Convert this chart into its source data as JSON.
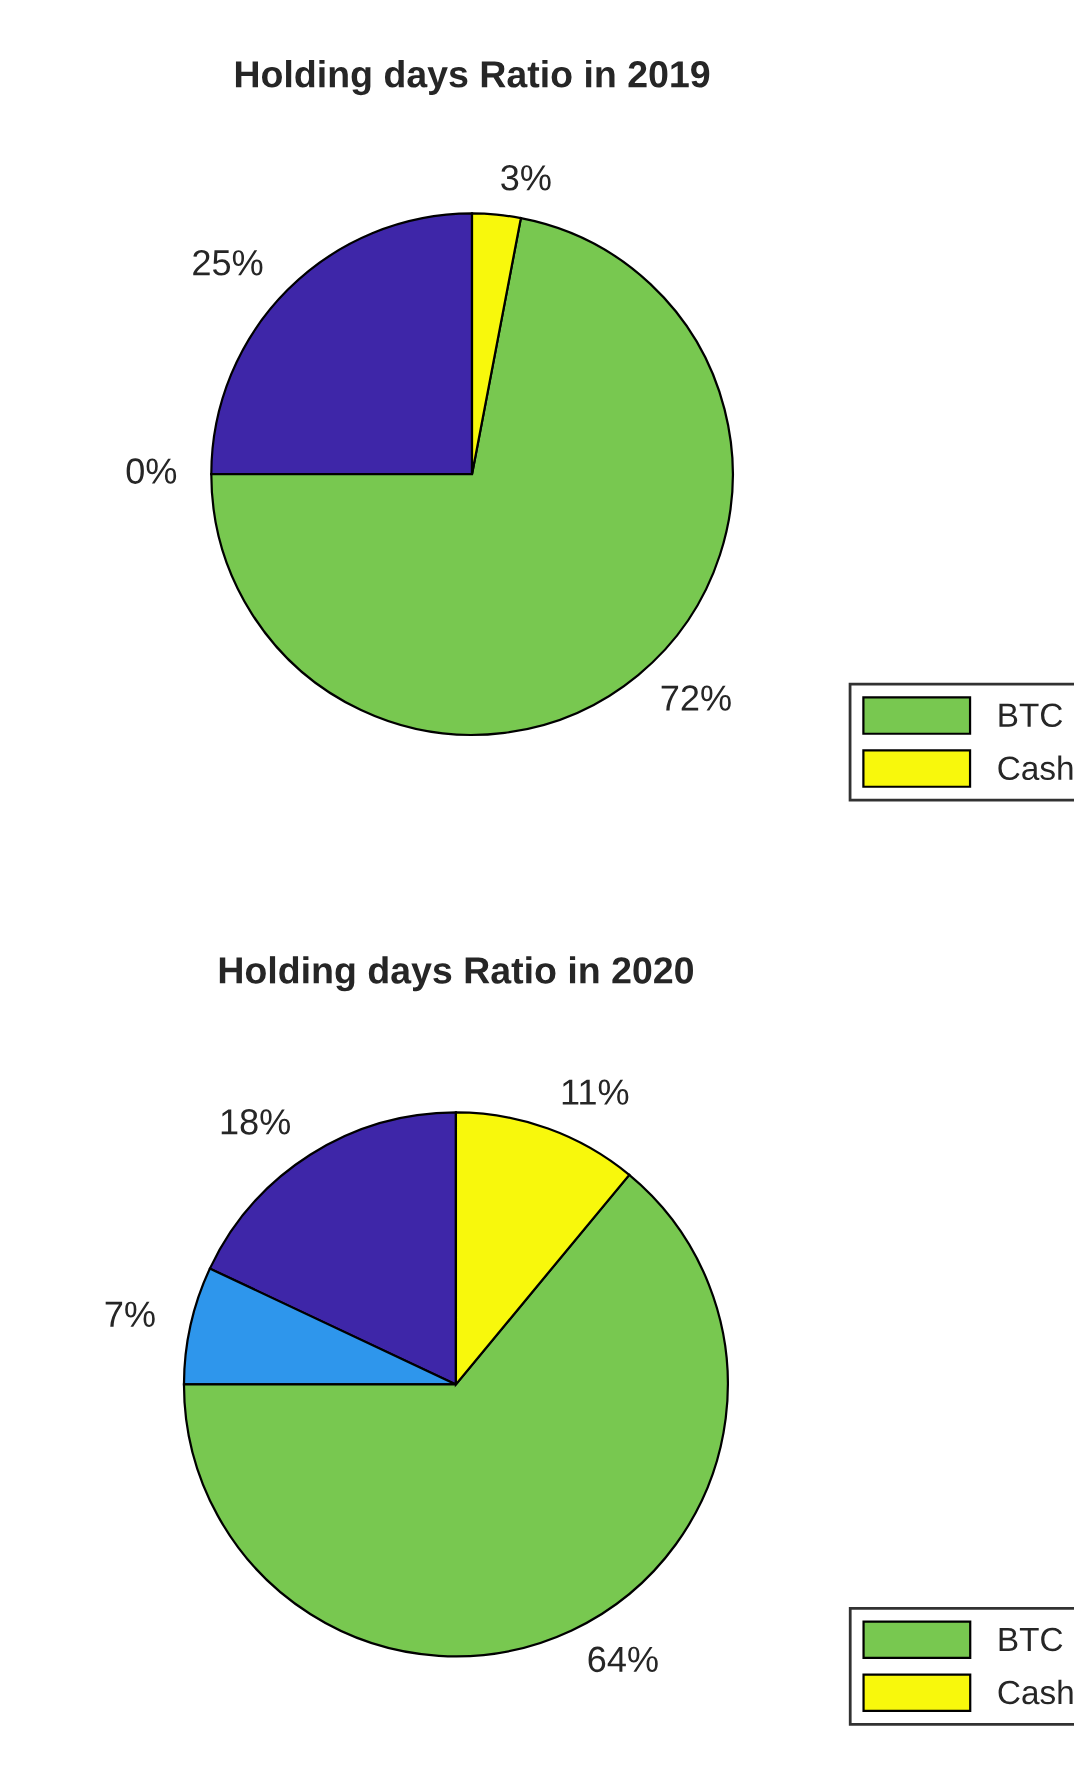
{
  "chart_data": [
    {
      "type": "pie",
      "title": "Holding days Ratio in 2019",
      "categories": [
        null,
        null,
        "BTC",
        "Cash"
      ],
      "values": [
        25,
        0,
        72,
        3
      ],
      "value_labels": [
        "25%",
        "0%",
        "72%",
        "3%"
      ],
      "colors": [
        "#3e26a8",
        "#2e96ec",
        "#78c850",
        "#f8f80c"
      ],
      "legend": "right"
    },
    {
      "type": "pie",
      "title": "Holding days Ratio in 2020",
      "categories": [
        null,
        null,
        "BTC",
        "Cash"
      ],
      "values": [
        18,
        7,
        64,
        11
      ],
      "value_labels": [
        "18%",
        "7%",
        "64%",
        "11%"
      ],
      "colors": [
        "#3e26a8",
        "#2e96ec",
        "#78c850",
        "#f8f80c"
      ],
      "legend": "right"
    }
  ]
}
